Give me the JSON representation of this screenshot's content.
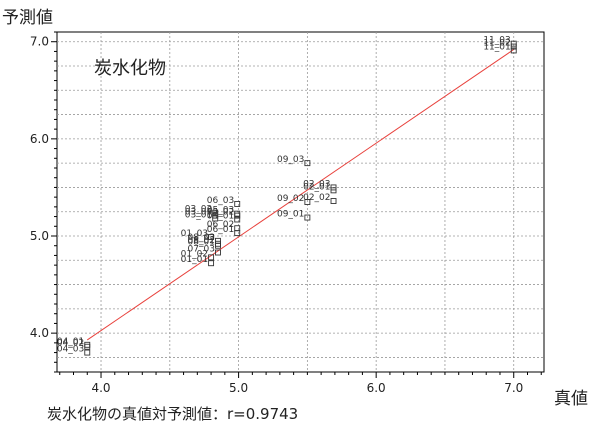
{
  "chart_data": {
    "type": "scatter",
    "ylabel": "予測値",
    "xlabel": "真値",
    "annotation": "炭水化物",
    "caption": "炭水化物の真値対予測値：r=0.9743",
    "xlim": [
      3.68,
      7.22
    ],
    "ylim": [
      3.6,
      7.1
    ],
    "xticks": [
      4.0,
      5.0,
      6.0,
      7.0
    ],
    "yticks": [
      4.0,
      5.0,
      6.0,
      7.0
    ],
    "xtick_labels": [
      "4.0",
      "5.0",
      "6.0",
      "7.0"
    ],
    "ytick_labels": [
      "4.0",
      "5.0",
      "6.0",
      "7.0"
    ],
    "grid": true,
    "fit_line": {
      "x": [
        3.9,
        7.0
      ],
      "y": [
        3.93,
        6.92
      ],
      "color": "#e8413c"
    },
    "marker_color": "#333333",
    "points": [
      {
        "label": "11_03",
        "x": 7.0,
        "y": 6.98
      },
      {
        "label": "11_02",
        "x": 7.0,
        "y": 6.95
      },
      {
        "label": "11_01",
        "x": 7.0,
        "y": 6.91
      },
      {
        "label": "09_03",
        "x": 5.5,
        "y": 5.75
      },
      {
        "label": "02_03",
        "x": 5.69,
        "y": 5.5
      },
      {
        "label": "02_01",
        "x": 5.69,
        "y": 5.47
      },
      {
        "label": "09_02",
        "x": 5.5,
        "y": 5.35
      },
      {
        "label": "02_02",
        "x": 5.69,
        "y": 5.36
      },
      {
        "label": "09_01",
        "x": 5.5,
        "y": 5.19
      },
      {
        "label": "06_03",
        "x": 4.99,
        "y": 5.33
      },
      {
        "label": "03_02",
        "x": 4.83,
        "y": 5.24
      },
      {
        "label": "03_03",
        "x": 4.83,
        "y": 5.21
      },
      {
        "label": "03_01",
        "x": 4.83,
        "y": 5.18
      },
      {
        "label": "05_03",
        "x": 4.99,
        "y": 5.23
      },
      {
        "label": "05_02",
        "x": 4.99,
        "y": 5.21
      },
      {
        "label": "05_01",
        "x": 4.99,
        "y": 5.17
      },
      {
        "label": "06_02",
        "x": 4.99,
        "y": 5.08
      },
      {
        "label": "06_01",
        "x": 4.99,
        "y": 5.03
      },
      {
        "label": "01_03",
        "x": 4.8,
        "y": 4.99
      },
      {
        "label": "08_03",
        "x": 4.85,
        "y": 4.95
      },
      {
        "label": "08_02",
        "x": 4.85,
        "y": 4.92
      },
      {
        "label": "08_01",
        "x": 4.85,
        "y": 4.9
      },
      {
        "label": "07_03",
        "x": 4.85,
        "y": 4.83
      },
      {
        "label": "01_02",
        "x": 4.8,
        "y": 4.78
      },
      {
        "label": "01_01",
        "x": 4.8,
        "y": 4.72
      },
      {
        "label": "04_01",
        "x": 3.9,
        "y": 3.88
      },
      {
        "label": "04_02",
        "x": 3.9,
        "y": 3.86
      },
      {
        "label": "04_03",
        "x": 3.9,
        "y": 3.8
      }
    ]
  }
}
